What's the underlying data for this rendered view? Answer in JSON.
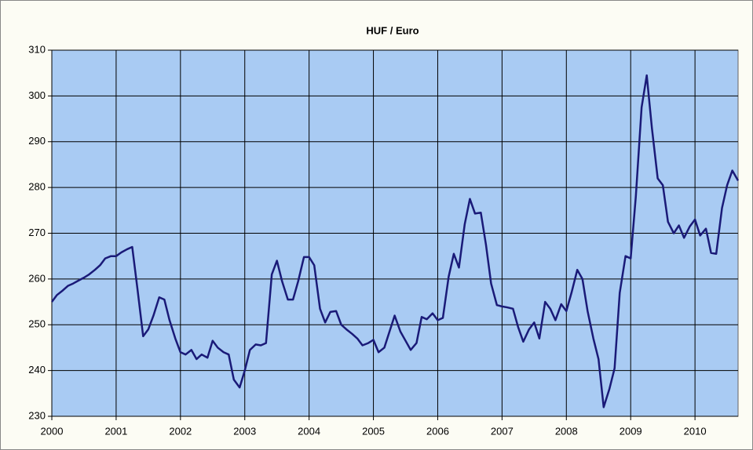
{
  "chart_data": {
    "type": "line",
    "title": "HUF / Euro",
    "x": [
      2000,
      2000.08,
      2000.17,
      2000.25,
      2000.33,
      2000.42,
      2000.5,
      2000.58,
      2000.67,
      2000.75,
      2000.83,
      2000.92,
      2001,
      2001.08,
      2001.17,
      2001.25,
      2001.33,
      2001.42,
      2001.5,
      2001.58,
      2001.67,
      2001.75,
      2001.83,
      2001.92,
      2002,
      2002.08,
      2002.17,
      2002.25,
      2002.33,
      2002.42,
      2002.5,
      2002.58,
      2002.67,
      2002.75,
      2002.83,
      2002.92,
      2003,
      2003.08,
      2003.17,
      2003.25,
      2003.33,
      2003.42,
      2003.5,
      2003.58,
      2003.67,
      2003.75,
      2003.83,
      2003.92,
      2004,
      2004.08,
      2004.17,
      2004.25,
      2004.33,
      2004.42,
      2004.5,
      2004.58,
      2004.67,
      2004.75,
      2004.83,
      2004.92,
      2005,
      2005.08,
      2005.17,
      2005.25,
      2005.33,
      2005.42,
      2005.5,
      2005.58,
      2005.67,
      2005.75,
      2005.83,
      2005.92,
      2006,
      2006.08,
      2006.17,
      2006.25,
      2006.33,
      2006.42,
      2006.5,
      2006.58,
      2006.67,
      2006.75,
      2006.83,
      2006.92,
      2007,
      2007.08,
      2007.17,
      2007.25,
      2007.33,
      2007.42,
      2007.5,
      2007.58,
      2007.67,
      2007.75,
      2007.83,
      2007.92,
      2008,
      2008.08,
      2008.17,
      2008.25,
      2008.33,
      2008.42,
      2008.5,
      2008.58,
      2008.67,
      2008.75,
      2008.83,
      2008.92,
      2009,
      2009.08,
      2009.17,
      2009.25,
      2009.33,
      2009.42,
      2009.5,
      2009.58,
      2009.67,
      2009.75,
      2009.83,
      2009.92,
      2010,
      2010.08,
      2010.17,
      2010.25,
      2010.33,
      2010.42,
      2010.5,
      2010.58,
      2010.67
    ],
    "series": [
      {
        "name": "HUF / Euro",
        "color": "#1a1a78",
        "values": [
          255,
          256.5,
          257.5,
          258.5,
          259,
          259.7,
          260.3,
          261,
          262,
          263,
          264.5,
          265,
          265,
          265.8,
          266.5,
          267,
          258,
          247.5,
          249,
          252,
          256,
          255.5,
          251,
          247,
          244,
          243.5,
          244.5,
          242.5,
          243.5,
          242.8,
          246.5,
          245,
          244,
          243.5,
          238,
          236.3,
          240,
          244.5,
          245.7,
          245.5,
          246,
          261,
          264,
          259.5,
          255.5,
          255.5,
          259.5,
          264.8,
          264.8,
          263,
          253.5,
          250.5,
          252.8,
          253,
          250,
          249,
          248,
          247,
          245.5,
          246,
          246.7,
          244,
          245,
          248.5,
          252,
          248.5,
          246.5,
          244.5,
          246,
          251.7,
          251.2,
          252.5,
          251,
          251.5,
          260.5,
          265.5,
          262.5,
          272,
          277.5,
          274.3,
          274.5,
          267.5,
          259,
          254.3,
          254,
          253.8,
          253.5,
          249.5,
          246.3,
          249,
          250.5,
          247,
          255,
          253.5,
          251,
          254.5,
          253,
          257,
          262,
          260,
          253,
          247,
          242.5,
          232,
          236,
          240.5,
          257,
          265,
          264.5,
          278,
          297.5,
          304.5,
          293,
          282,
          280.5,
          272.5,
          270,
          271.7,
          269,
          271.5,
          273,
          269.5,
          271,
          265.7,
          265.5,
          275.5,
          280.5,
          283.7,
          281.5
        ]
      }
    ],
    "xlim": [
      2000,
      2010.67
    ],
    "xticks": [
      2000,
      2001,
      2002,
      2003,
      2004,
      2005,
      2006,
      2007,
      2008,
      2009,
      2010
    ],
    "ylim": [
      230,
      310
    ],
    "yticks": [
      230,
      240,
      250,
      260,
      270,
      280,
      290,
      300,
      310
    ],
    "grid": true
  }
}
